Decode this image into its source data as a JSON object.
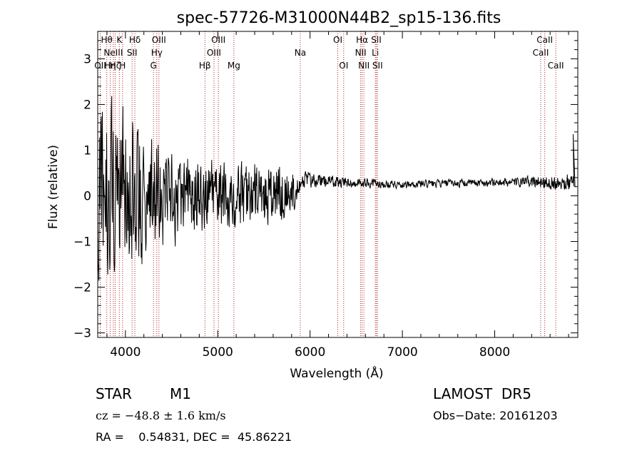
{
  "chart_data": {
    "type": "line",
    "title": "spec-57726-M31000N44B2_sp15-136.fits",
    "xlabel": "Wavelength (Å)",
    "ylabel": "Flux (relative)",
    "xlim": [
      3700,
      8900
    ],
    "ylim": [
      -3.1,
      3.6
    ],
    "xticks": [
      4000,
      5000,
      6000,
      7000,
      8000
    ],
    "yticks": [
      -3,
      -2,
      -1,
      0,
      1,
      2,
      3
    ],
    "grid": false,
    "line_color": "#000000",
    "marker_color": "#b22222",
    "spectrum_envelope": [
      {
        "x": 3700,
        "amp": 2.6,
        "center": 0.1
      },
      {
        "x": 4000,
        "amp": 2.2,
        "center": 0.1
      },
      {
        "x": 4300,
        "amp": 1.5,
        "center": 0.0
      },
      {
        "x": 4700,
        "amp": 1.05,
        "center": 0.0
      },
      {
        "x": 5200,
        "amp": 0.9,
        "center": 0.0
      },
      {
        "x": 5700,
        "amp": 0.85,
        "center": 0.0
      },
      {
        "x": 5800,
        "amp": 0.7,
        "center": 0.1
      },
      {
        "x": 5900,
        "amp": 0.25,
        "center": 0.35
      },
      {
        "x": 6300,
        "amp": 0.15,
        "center": 0.3
      },
      {
        "x": 7000,
        "amp": 0.1,
        "center": 0.25
      },
      {
        "x": 8200,
        "amp": 0.12,
        "center": 0.3
      },
      {
        "x": 8900,
        "amp": 0.25,
        "center": 0.3
      }
    ],
    "spectrum_spikes": [
      {
        "x": 8850,
        "y": 1.35
      },
      {
        "x": 8870,
        "y": 0.2
      }
    ],
    "lines": [
      {
        "x": 3727,
        "label": "OII",
        "row": 2
      },
      {
        "x": 3798,
        "label": "Hθ",
        "row": 0
      },
      {
        "x": 3835,
        "label": "Hη",
        "row": 2
      },
      {
        "x": 3869,
        "label": "NeIII",
        "row": 1
      },
      {
        "x": 3889,
        "label": "Hζ",
        "row": 2
      },
      {
        "x": 3934,
        "label": "K",
        "row": 0
      },
      {
        "x": 3969,
        "label": "H",
        "row": 2
      },
      {
        "x": 4072,
        "label": "SII",
        "row": 1
      },
      {
        "x": 4102,
        "label": "Hδ",
        "row": 0
      },
      {
        "x": 4304,
        "label": "G",
        "row": 2
      },
      {
        "x": 4340,
        "label": "Hγ",
        "row": 1
      },
      {
        "x": 4363,
        "label": "OIII",
        "row": 0
      },
      {
        "x": 4861,
        "label": "Hβ",
        "row": 2
      },
      {
        "x": 4959,
        "label": "OIII",
        "row": 1
      },
      {
        "x": 5007,
        "label": "OIII",
        "row": 0
      },
      {
        "x": 5175,
        "label": "Mg",
        "row": 2
      },
      {
        "x": 5894,
        "label": "Na",
        "row": 1
      },
      {
        "x": 6300,
        "label": "OI",
        "row": 0
      },
      {
        "x": 6364,
        "label": "OI",
        "row": 2
      },
      {
        "x": 6548,
        "label": "NII",
        "row": 1
      },
      {
        "x": 6563,
        "label": "Hα",
        "row": 0
      },
      {
        "x": 6583,
        "label": "NII",
        "row": 2
      },
      {
        "x": 6707,
        "label": "Li",
        "row": 1
      },
      {
        "x": 6717,
        "label": "SII",
        "row": 0
      },
      {
        "x": 6731,
        "label": "SII",
        "row": 2
      },
      {
        "x": 8498,
        "label": "CaII",
        "row": 1
      },
      {
        "x": 8542,
        "label": "CaII",
        "row": 0
      },
      {
        "x": 8662,
        "label": "CaII",
        "row": 2
      }
    ]
  },
  "info": {
    "class_label": "STAR",
    "subclass_label": "M1",
    "survey_label": "LAMOST  DR5",
    "cz_text": "cz = −48.8 ± 1.6 km/s",
    "obs_date_text": "Obs−Date: 20161203",
    "radec_text": "RA =    0.54831, DEC =  45.86221"
  }
}
